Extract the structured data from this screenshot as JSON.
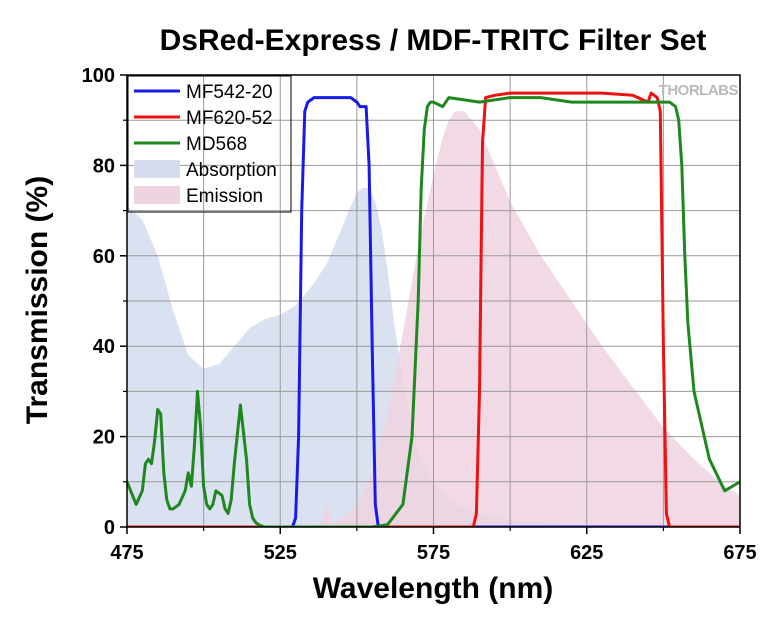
{
  "watermark": "THORLABS",
  "chart_data": {
    "type": "line",
    "title": "DsRed-Express / MDF-TRITC Filter Set",
    "xlabel": "Wavelength (nm)",
    "ylabel": "Transmission (%)",
    "xlim": [
      475,
      675
    ],
    "ylim": [
      0,
      100
    ],
    "xticks": [
      475,
      525,
      575,
      625,
      675
    ],
    "yticks": [
      0,
      20,
      40,
      60,
      80,
      100
    ],
    "grid": true,
    "legend_position": "top-left",
    "series": [
      {
        "name": "Absorption",
        "kind": "area",
        "color": "#d4dcee",
        "x": [
          475,
          480,
          485,
          490,
          495,
          500,
          505,
          510,
          515,
          520,
          525,
          530,
          535,
          540,
          545,
          548,
          550,
          552,
          554,
          556,
          558,
          560,
          562,
          565,
          568,
          570,
          575,
          580,
          585,
          590,
          600,
          610,
          620,
          640,
          660,
          675
        ],
        "y": [
          71,
          68,
          60,
          48,
          38,
          35,
          36,
          40,
          44,
          46,
          47,
          49,
          53,
          58,
          66,
          71,
          74,
          75,
          75,
          72,
          66,
          57,
          46,
          32,
          22,
          16,
          10,
          6,
          4,
          3,
          1.5,
          1,
          0.5,
          0.3,
          0.1,
          0
        ]
      },
      {
        "name": "Emission",
        "kind": "area",
        "color": "#eed4e0",
        "x": [
          475,
          530,
          538,
          540,
          542,
          545,
          550,
          555,
          560,
          565,
          570,
          575,
          578,
          580,
          582,
          585,
          590,
          595,
          600,
          610,
          620,
          630,
          640,
          650,
          660,
          670,
          675
        ],
        "y": [
          0,
          0,
          0.5,
          5,
          1,
          2,
          5,
          12,
          25,
          43,
          62,
          78,
          86,
          90,
          92,
          92,
          88,
          80,
          72,
          60,
          50,
          40,
          31,
          22,
          15,
          9,
          7
        ]
      },
      {
        "name": "MF542-20",
        "kind": "line",
        "color": "#1a1ae6",
        "x": [
          475,
          529,
          530,
          531,
          532,
          533,
          534,
          536,
          540,
          544,
          546,
          548,
          550,
          551,
          553,
          554,
          555,
          556,
          557,
          675
        ],
        "y": [
          0,
          0,
          2,
          20,
          70,
          92,
          94,
          95,
          95,
          95,
          95,
          95,
          94,
          93,
          93,
          80,
          40,
          5,
          0,
          0
        ]
      },
      {
        "name": "MF620-52",
        "kind": "line",
        "color": "#ee1111",
        "x": [
          475,
          588,
          589,
          590,
          591,
          592,
          595,
          600,
          610,
          620,
          630,
          640,
          645,
          646,
          648,
          649,
          650,
          651,
          652,
          675
        ],
        "y": [
          0,
          0,
          3,
          30,
          85,
          95,
          95.5,
          96,
          96,
          96,
          96,
          95.5,
          94,
          96,
          95,
          92,
          40,
          3,
          0,
          0
        ]
      },
      {
        "name": "MD568",
        "kind": "line",
        "color": "#1e881e",
        "x": [
          475,
          478,
          480,
          481,
          482,
          483,
          484,
          485,
          486,
          487,
          488,
          489,
          490,
          492,
          494,
          495,
          496,
          497,
          498,
          499,
          500,
          501,
          502,
          503,
          504,
          506,
          507,
          508,
          509,
          510,
          512,
          514,
          515,
          516,
          517,
          518,
          519,
          520,
          522,
          525,
          528,
          535,
          545,
          555,
          560,
          565,
          568,
          570,
          571,
          572,
          573,
          574,
          575,
          578,
          580,
          590,
          600,
          610,
          620,
          630,
          640,
          645,
          650,
          652,
          654,
          655,
          656,
          657,
          658,
          660,
          665,
          670,
          675
        ],
        "y": [
          10,
          5,
          8,
          14,
          15,
          14,
          19,
          26,
          25,
          12,
          6,
          4,
          4,
          5,
          8,
          12,
          9,
          18,
          30,
          22,
          9,
          5,
          4,
          5,
          8,
          7,
          4,
          3,
          6,
          14,
          27,
          15,
          5,
          2,
          1,
          0.5,
          0.2,
          0,
          0,
          0,
          0,
          0,
          0,
          0,
          0.5,
          5,
          20,
          50,
          75,
          88,
          93,
          94,
          94,
          93,
          95,
          94,
          95,
          95,
          94,
          94,
          94,
          94,
          94,
          94,
          93,
          90,
          80,
          60,
          45,
          30,
          15,
          8,
          10
        ]
      }
    ]
  }
}
